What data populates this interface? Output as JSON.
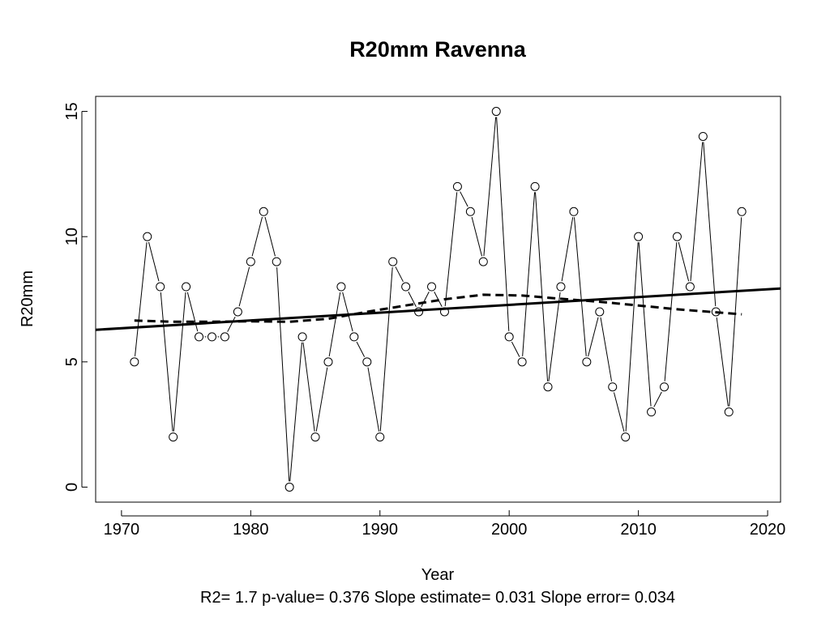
{
  "chart_data": {
    "type": "line",
    "title": "R20mm   Ravenna",
    "xlabel": "Year",
    "ylabel": "R20mm",
    "footer": "R2= 1.7  p-value= 0.376  Slope estimate= 0.031  Slope error= 0.034",
    "xlim": [
      1968,
      2021
    ],
    "ylim": [
      -0.6,
      15.6
    ],
    "x_ticks": [
      "1970",
      "1980",
      "1990",
      "2000",
      "2010",
      "2020"
    ],
    "y_ticks": [
      "0",
      "5",
      "10",
      "15"
    ],
    "series": [
      {
        "style": "points-and-lines",
        "x": [
          1971,
          1972,
          1973,
          1974,
          1975,
          1976,
          1977,
          1978,
          1979,
          1980,
          1981,
          1982,
          1983,
          1984,
          1985,
          1986,
          1987,
          1988,
          1989,
          1990,
          1991,
          1992,
          1993,
          1994,
          1995,
          1996,
          1997,
          1998,
          1999,
          2000,
          2001,
          2002,
          2003,
          2004,
          2005,
          2006,
          2007,
          2008,
          2009,
          2010,
          2011,
          2012,
          2013,
          2014,
          2015,
          2016,
          2017,
          2018
        ],
        "y": [
          5,
          10,
          8,
          2,
          8,
          6,
          6,
          6,
          7,
          9,
          11,
          9,
          0,
          6,
          2,
          5,
          8,
          6,
          5,
          2,
          9,
          8,
          7,
          8,
          7,
          12,
          11,
          9,
          15,
          6,
          5,
          12,
          4,
          8,
          11,
          5,
          7,
          4,
          2,
          10,
          3,
          4,
          10,
          8,
          14,
          7,
          3,
          11
        ]
      },
      {
        "style": "solid-trend-line",
        "x": [
          1968,
          2021
        ],
        "y": [
          6.28,
          7.93
        ]
      },
      {
        "style": "dashed-smooth-line",
        "x": [
          1971,
          1974,
          1977,
          1980,
          1983,
          1986,
          1989,
          1992,
          1995,
          1998,
          2001,
          2004,
          2007,
          2010,
          2013,
          2016,
          2018
        ],
        "y": [
          6.65,
          6.6,
          6.6,
          6.62,
          6.6,
          6.72,
          7.0,
          7.25,
          7.5,
          7.68,
          7.65,
          7.52,
          7.4,
          7.25,
          7.1,
          6.98,
          6.9
        ]
      }
    ]
  }
}
